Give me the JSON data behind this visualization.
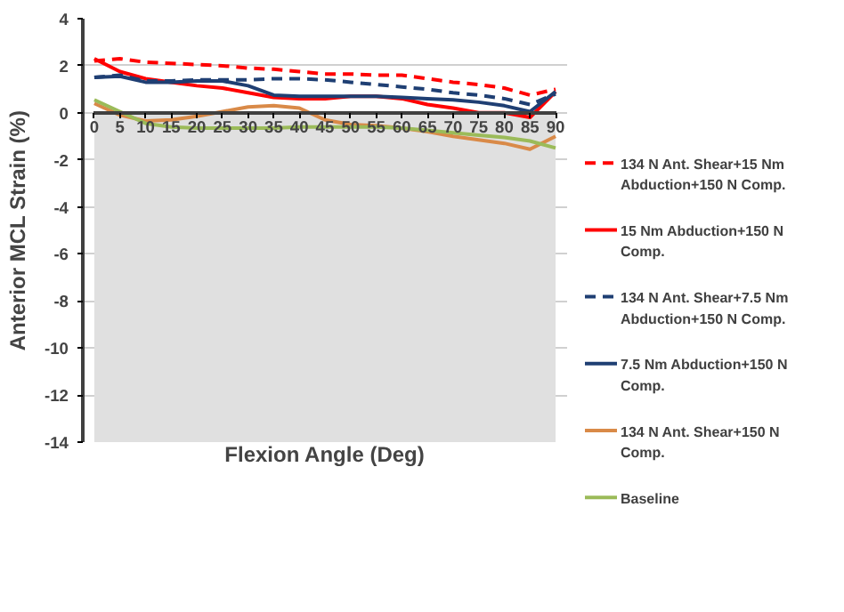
{
  "chart_data": {
    "type": "line",
    "xlabel": "Flexion Angle (Deg)",
    "ylabel": "Anterior MCL Strain (%)",
    "xlim": [
      0,
      90
    ],
    "xticks": [
      0,
      5,
      10,
      15,
      20,
      25,
      30,
      35,
      40,
      45,
      50,
      55,
      60,
      65,
      70,
      75,
      80,
      85,
      90
    ],
    "ylim": [
      -14,
      4
    ],
    "yticks": [
      -14,
      -12,
      -10,
      -8,
      -6,
      -4,
      -2,
      0,
      2,
      4
    ],
    "grid": "y",
    "legend": "right",
    "marker": "none",
    "bands": [
      {
        "axis": "y",
        "from": -14,
        "to": 0,
        "color": "#e0e0e0"
      }
    ],
    "x": [
      0,
      5,
      10,
      15,
      20,
      25,
      30,
      35,
      40,
      45,
      50,
      55,
      60,
      65,
      70,
      75,
      80,
      85,
      90
    ],
    "series": [
      {
        "name": "134 N Ant. Shear+15 Nm Abduction+150 N Comp.",
        "color": "#ff0000",
        "line_style": "dashed",
        "values": [
          2.2,
          2.3,
          2.15,
          2.1,
          2.05,
          2.0,
          1.9,
          1.85,
          1.75,
          1.65,
          1.65,
          1.6,
          1.6,
          1.45,
          1.3,
          1.2,
          1.05,
          0.75,
          1.0
        ]
      },
      {
        "name": "15 Nm Abduction+150 N Comp.",
        "color": "#ff0000",
        "line_style": "solid",
        "values": [
          2.3,
          1.75,
          1.45,
          1.3,
          1.15,
          1.05,
          0.85,
          0.65,
          0.6,
          0.6,
          0.7,
          0.7,
          0.6,
          0.35,
          0.2,
          0.0,
          0.0,
          -0.2,
          0.9
        ]
      },
      {
        "name": "134 N Ant. Shear+7.5 Nm Abduction+150 N Comp.",
        "color": "#1f3f73",
        "line_style": "dashed",
        "values": [
          1.5,
          1.6,
          1.35,
          1.35,
          1.4,
          1.4,
          1.4,
          1.45,
          1.45,
          1.4,
          1.3,
          1.2,
          1.1,
          1.0,
          0.85,
          0.75,
          0.6,
          0.35,
          0.8
        ]
      },
      {
        "name": "7.5 Nm Abduction+150 N Comp.",
        "color": "#1f3f73",
        "line_style": "solid",
        "values": [
          1.5,
          1.55,
          1.3,
          1.3,
          1.35,
          1.35,
          1.15,
          0.75,
          0.7,
          0.7,
          0.7,
          0.7,
          0.65,
          0.6,
          0.55,
          0.45,
          0.3,
          0.05,
          0.9
        ]
      },
      {
        "name": "134 N Ant. Shear+150 N Comp.",
        "color": "#d98a48",
        "line_style": "solid",
        "values": [
          0.4,
          -0.1,
          -0.35,
          -0.3,
          -0.15,
          0.05,
          0.25,
          0.3,
          0.2,
          -0.3,
          -0.5,
          -0.55,
          -0.65,
          -0.8,
          -1.0,
          -1.15,
          -1.3,
          -1.55,
          -1.0
        ]
      },
      {
        "name": "Baseline",
        "color": "#9bbb59",
        "line_style": "solid",
        "values": [
          0.55,
          0.05,
          -0.45,
          -0.6,
          -0.65,
          -0.65,
          -0.65,
          -0.65,
          -0.6,
          -0.6,
          -0.6,
          -0.6,
          -0.65,
          -0.75,
          -0.85,
          -0.95,
          -1.05,
          -1.2,
          -1.5
        ]
      }
    ]
  }
}
